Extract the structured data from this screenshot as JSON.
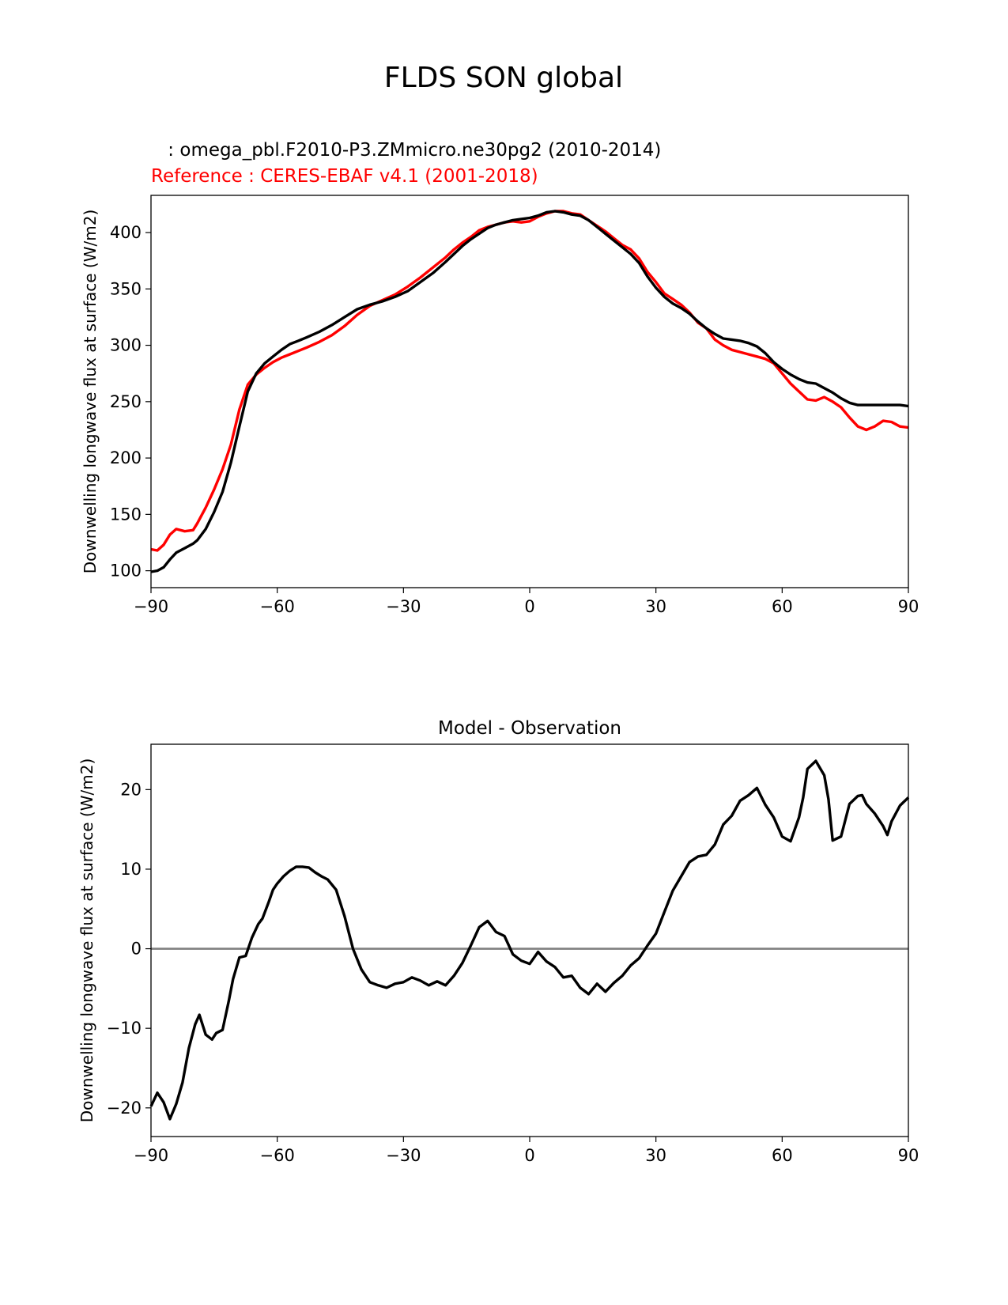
{
  "title": "FLDS SON global",
  "chart_data": [
    {
      "type": "line",
      "test_label": " : omega_pbl.F2010-P3.ZMmicro.ne30pg2 (2010-2014)",
      "ref_label": "Reference : CERES-EBAF v4.1 (2001-2018)",
      "xlabel": "",
      "ylabel": "Downwelling longwave flux at surface (W/m2)",
      "xlim": [
        -90,
        90
      ],
      "ylim": [
        85,
        433
      ],
      "xticks": [
        -90,
        -60,
        -30,
        0,
        30,
        60,
        90
      ],
      "xtick_labels": [
        "−90",
        "−60",
        "−30",
        "0",
        "30",
        "60",
        "90"
      ],
      "yticks": [
        100,
        150,
        200,
        250,
        300,
        350,
        400
      ],
      "ytick_labels": [
        "100",
        "150",
        "200",
        "250",
        "300",
        "350",
        "400"
      ],
      "series": [
        {
          "name": "Reference : CERES-EBAF v4.1 (2001-2018)",
          "color": "#ff0000",
          "x": [
            -90,
            -88.5,
            -87,
            -85.5,
            -84,
            -82,
            -80,
            -79,
            -77,
            -75,
            -73,
            -71,
            -69,
            -67,
            -65,
            -63,
            -61,
            -59,
            -57,
            -55,
            -53,
            -50,
            -47,
            -44,
            -41,
            -38,
            -35,
            -32,
            -29,
            -26,
            -23,
            -20,
            -18,
            -16,
            -14,
            -12,
            -10,
            -8,
            -6,
            -4,
            -2,
            0,
            2,
            4,
            6,
            8,
            10,
            12,
            14,
            16,
            18,
            20,
            22,
            24,
            26,
            28,
            30,
            32,
            34,
            36,
            38,
            40,
            42,
            44,
            46,
            48,
            50,
            52,
            54,
            56,
            58,
            60,
            62,
            64,
            66,
            68,
            70,
            72,
            74,
            76,
            78,
            80,
            82,
            84,
            86,
            88,
            90
          ],
          "y": [
            119,
            118,
            123,
            132,
            137,
            135,
            136,
            142,
            156,
            172,
            190,
            212,
            243,
            265,
            274,
            280,
            285,
            289,
            292,
            295,
            298,
            303,
            309,
            317,
            327,
            335,
            340,
            345,
            352,
            360,
            369,
            378,
            385,
            391,
            396,
            402,
            405,
            407,
            409,
            410,
            409,
            410,
            414,
            417,
            419,
            419,
            417,
            416,
            411,
            406,
            401,
            395,
            389,
            385,
            377,
            365,
            356,
            346,
            341,
            336,
            329,
            320,
            315,
            305,
            300,
            296,
            294,
            292,
            290,
            288,
            284,
            275,
            266,
            259,
            252,
            251,
            254,
            250,
            245,
            236,
            228,
            225,
            228,
            233,
            232,
            228,
            227
          ]
        },
        {
          "name": "omega_pbl.F2010-P3.ZMmicro.ne30pg2 (2010-2014)",
          "color": "#000000",
          "x": [
            -90,
            -88.5,
            -87,
            -85.5,
            -84,
            -82,
            -80,
            -79,
            -77,
            -75,
            -73,
            -71,
            -69,
            -67,
            -65,
            -63,
            -61,
            -59,
            -57,
            -55,
            -53,
            -50,
            -47,
            -44,
            -41,
            -38,
            -35,
            -32,
            -29,
            -26,
            -23,
            -20,
            -18,
            -16,
            -14,
            -12,
            -10,
            -8,
            -6,
            -4,
            -2,
            0,
            2,
            4,
            6,
            8,
            10,
            12,
            14,
            16,
            18,
            20,
            22,
            24,
            26,
            28,
            30,
            32,
            34,
            36,
            38,
            40,
            42,
            44,
            46,
            48,
            50,
            52,
            54,
            56,
            58,
            60,
            62,
            64,
            66,
            68,
            70,
            72,
            74,
            76,
            78,
            80,
            82,
            84,
            86,
            88,
            90
          ],
          "y": [
            99,
            100,
            103,
            110,
            116,
            120,
            124,
            127,
            137,
            152,
            170,
            196,
            228,
            259,
            275,
            284,
            290,
            296,
            301,
            304,
            307,
            312,
            318,
            325,
            332,
            336,
            339,
            343,
            348,
            356,
            364,
            374,
            381,
            388,
            394,
            399,
            404,
            407,
            409,
            411,
            412,
            413,
            415,
            418,
            419,
            418,
            416,
            415,
            411,
            405,
            399,
            393,
            387,
            381,
            373,
            361,
            351,
            343,
            337,
            333,
            328,
            321,
            315,
            310,
            306,
            305,
            304,
            302,
            299,
            293,
            285,
            279,
            274,
            270,
            267,
            266,
            262,
            258,
            253,
            249,
            247,
            247,
            247,
            247,
            247,
            247,
            246
          ]
        }
      ]
    },
    {
      "type": "line",
      "title": "Model - Observation",
      "xlabel": "",
      "ylabel": "Downwelling longwave flux at surface (W/m2)",
      "xlim": [
        -90,
        90
      ],
      "ylim": [
        -23.6,
        25.7
      ],
      "xticks": [
        -90,
        -60,
        -30,
        0,
        30,
        60,
        90
      ],
      "xtick_labels": [
        "−90",
        "−60",
        "−30",
        "0",
        "30",
        "60",
        "90"
      ],
      "yticks": [
        -20,
        -10,
        0,
        10,
        20
      ],
      "ytick_labels": [
        "−20",
        "−10",
        "0",
        "10",
        "20"
      ],
      "reference_line": {
        "y": 0,
        "color": "#808080"
      },
      "series": [
        {
          "name": "Model - Observation",
          "color": "#000000",
          "x": [
            -90,
            -88.5,
            -87,
            -85.5,
            -84,
            -82.5,
            -81,
            -79.5,
            -78.5,
            -77,
            -75.5,
            -74.5,
            -73,
            -71.5,
            -70.5,
            -69,
            -67.5,
            -66,
            -64.5,
            -63.5,
            -62,
            -61,
            -60,
            -58.5,
            -57,
            -55.5,
            -54,
            -52.5,
            -51,
            -49.5,
            -48,
            -46,
            -44,
            -42,
            -40,
            -38,
            -36,
            -34,
            -32,
            -30,
            -28,
            -26,
            -24,
            -22,
            -20,
            -18,
            -16,
            -14,
            -12,
            -10,
            -8,
            -6,
            -4,
            -2,
            0,
            2,
            4,
            6,
            8,
            10,
            12,
            14,
            16,
            18,
            20,
            22,
            24,
            26,
            28,
            30,
            32,
            34,
            36,
            38,
            40,
            42,
            44,
            46,
            48,
            50,
            52,
            54,
            56,
            58,
            60,
            62,
            64,
            65,
            66,
            68,
            70,
            71,
            72,
            74,
            76,
            78,
            79,
            80,
            82,
            84,
            85,
            86,
            88,
            89,
            90
          ],
          "y": [
            -19.8,
            -18.1,
            -19.3,
            -21.4,
            -19.5,
            -16.8,
            -12.5,
            -9.5,
            -8.3,
            -10.8,
            -11.4,
            -10.6,
            -10.2,
            -6.5,
            -3.8,
            -1.1,
            -0.9,
            1.4,
            3.1,
            3.8,
            5.9,
            7.4,
            8.2,
            9.1,
            9.8,
            10.3,
            10.3,
            10.2,
            9.6,
            9.1,
            8.7,
            7.4,
            4.1,
            0.0,
            -2.6,
            -4.2,
            -4.6,
            -4.9,
            -4.4,
            -4.2,
            -3.6,
            -4.0,
            -4.6,
            -4.1,
            -4.6,
            -3.4,
            -1.8,
            0.4,
            2.7,
            3.5,
            2.1,
            1.6,
            -0.7,
            -1.5,
            -1.9,
            -0.4,
            -1.6,
            -2.3,
            -3.6,
            -3.4,
            -4.9,
            -5.7,
            -4.4,
            -5.4,
            -4.3,
            -3.4,
            -2.1,
            -1.2,
            0.4,
            1.9,
            4.6,
            7.3,
            9.1,
            10.9,
            11.6,
            11.8,
            13.1,
            15.6,
            16.7,
            18.6,
            19.3,
            20.2,
            18.1,
            16.5,
            14.1,
            13.5,
            16.5,
            19.0,
            22.6,
            23.6,
            21.8,
            18.8,
            13.6,
            14.1,
            18.2,
            19.2,
            19.3,
            18.2,
            17.0,
            15.4,
            14.3,
            16.0,
            18.0,
            18.5,
            19.0
          ]
        }
      ]
    }
  ]
}
